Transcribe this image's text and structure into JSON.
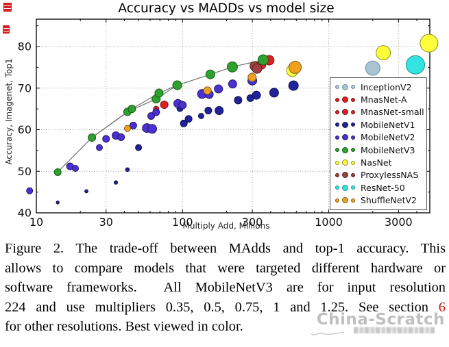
{
  "watermark": {
    "text": "China-Scratch"
  },
  "caption": {
    "lines": [
      {
        "justify": true,
        "segments": [
          {
            "t": "Figure 2. The trade-off between MAdds and top-1 accuracy. This"
          }
        ]
      },
      {
        "justify": true,
        "segments": [
          {
            "t": "allows to compare models that were targeted different hardware or"
          }
        ]
      },
      {
        "justify": true,
        "segments": [
          {
            "t": "software frameworks.  All MobileNetV3 are for input resolution"
          }
        ]
      },
      {
        "justify": true,
        "segments": [
          {
            "t": "224 and use multipliers 0.35, 0.5, 0.75, 1 and 1.25. See section"
          },
          {
            "t": " "
          },
          {
            "t": "6",
            "red": true,
            "link": true
          }
        ]
      },
      {
        "justify": false,
        "segments": [
          {
            "t": "for other resolutions. Best viewed in color."
          }
        ]
      }
    ]
  },
  "chart_data": {
    "type": "scatter",
    "title": "Accuracy vs MADDs vs model size",
    "xlabel": "Multiply Add, Millions",
    "ylabel": "Accuracy, Imagenet, Top1",
    "xscale": "log",
    "xlim": [
      10,
      4900
    ],
    "ylim": [
      40,
      86.6
    ],
    "xticks": [
      10,
      30,
      100,
      300,
      1000,
      3000
    ],
    "xminorticks": [
      20,
      40,
      50,
      60,
      70,
      80,
      90,
      200,
      400,
      500,
      600,
      700,
      800,
      900,
      2000,
      4000
    ],
    "yticks": [
      40,
      50,
      60,
      70,
      80
    ],
    "yminorticks": [
      45,
      55,
      65,
      75,
      85
    ],
    "grid": true,
    "legend_position": "right",
    "note": "point format: [madds_millions, top1_accuracy, marker_radius_px]",
    "series": [
      {
        "name": "InceptionV2",
        "color": "#aac4d4",
        "edge": "#70909f",
        "points": [
          [
            2000,
            74.8,
            10.5
          ]
        ]
      },
      {
        "name": "MnasNet-A",
        "color": "#e02020",
        "edge": "#7f1010",
        "points": [
          [
            75,
            66.0,
            5.5
          ],
          [
            346,
            75.6,
            6.5
          ],
          [
            392,
            76.7,
            7
          ]
        ]
      },
      {
        "name": "MnasNet-small",
        "color": "#d4202a",
        "edge": "#6f1015",
        "points": [
          [
            66,
            65.0,
            4
          ]
        ]
      },
      {
        "name": "MobileNetV1",
        "color": "#22229b",
        "edge": "#0e0e4e",
        "points": [
          [
            14,
            42.5,
            2.2
          ],
          [
            22,
            45.2,
            2.4
          ],
          [
            35,
            47.3,
            2.6
          ],
          [
            42,
            50.4,
            2.8
          ],
          [
            50,
            55.7,
            4.5
          ],
          [
            96,
            65.1,
            4.5
          ],
          [
            102,
            61.5,
            5
          ],
          [
            110,
            62.6,
            5
          ],
          [
            134,
            63.3,
            4
          ],
          [
            150,
            64.6,
            5
          ],
          [
            178,
            64.6,
            6
          ],
          [
            240,
            67.1,
            5.5
          ],
          [
            291,
            67.6,
            5
          ],
          [
            320,
            68.3,
            6
          ],
          [
            423,
            68.9,
            6.5
          ],
          [
            574,
            70.6,
            7
          ]
        ]
      },
      {
        "name": "MobileNetV2",
        "color": "#4a32d2",
        "edge": "#221566",
        "points": [
          [
            9,
            45.3,
            4.5
          ],
          [
            17,
            51.2,
            5
          ],
          [
            18.5,
            50.7,
            4.5
          ],
          [
            27,
            55.7,
            4.5
          ],
          [
            30,
            57.8,
            5
          ],
          [
            35,
            58.6,
            5.5
          ],
          [
            38,
            58.2,
            5
          ],
          [
            46,
            61.0,
            5
          ],
          [
            57,
            60.4,
            6.5
          ],
          [
            62,
            60.2,
            6.5
          ],
          [
            61,
            63.3,
            5
          ],
          [
            66,
            64.2,
            5
          ],
          [
            93,
            66.3,
            6
          ],
          [
            100,
            65.9,
            5.5
          ],
          [
            136,
            68.6,
            6.5
          ],
          [
            152,
            68.5,
            6
          ],
          [
            176,
            69.8,
            6
          ],
          [
            220,
            71.0,
            6
          ],
          [
            300,
            71.8,
            6.5
          ],
          [
            575,
            74.9,
            7.5
          ]
        ]
      },
      {
        "name": "MobileNetV3",
        "color": "#2ea12e",
        "edge": "#145c14",
        "points": [
          [
            14,
            49.8,
            5
          ],
          [
            24,
            58.1,
            5.5
          ],
          [
            42,
            64.3,
            5.5
          ],
          [
            45,
            65.0,
            5.5
          ],
          [
            66,
            67.4,
            6
          ],
          [
            69,
            68.8,
            6
          ],
          [
            92,
            70.7,
            6.5
          ],
          [
            155,
            73.3,
            6.5
          ],
          [
            219,
            75.1,
            7.5
          ],
          [
            356,
            76.8,
            7.5
          ]
        ]
      },
      {
        "name": "NasNet",
        "color": "#fdff3a",
        "edge": "#8e8e20",
        "points": [
          [
            564,
            74.2,
            8.5
          ],
          [
            2360,
            78.5,
            10.5
          ],
          [
            4850,
            80.8,
            13
          ]
        ]
      },
      {
        "name": "ProxylessNAS",
        "color": "#a04040",
        "edge": "#502020",
        "points": [
          [
            310,
            75.3,
            6.5
          ],
          [
            323,
            74.7,
            7
          ]
        ]
      },
      {
        "name": "ResNet-50",
        "color": "#35e3e3",
        "edge": "#1d9090",
        "points": [
          [
            3915,
            75.6,
            13.5
          ]
        ]
      },
      {
        "name": "ShuffleNetV2",
        "color": "#f0a01e",
        "edge": "#79601c",
        "points": [
          [
            42,
            60.3,
            4.5
          ],
          [
            148,
            69.4,
            5.5
          ],
          [
            299,
            72.6,
            6
          ],
          [
            589,
            75.0,
            9
          ]
        ]
      }
    ],
    "trend_lines": [
      {
        "series": "MobileNetV3",
        "points": [
          [
            14,
            49.8
          ],
          [
            24,
            58.1
          ],
          [
            42,
            64.3
          ],
          [
            66,
            67.4
          ],
          [
            92,
            70.7
          ],
          [
            155,
            73.3
          ],
          [
            219,
            75.1
          ],
          [
            356,
            76.8
          ]
        ]
      },
      {
        "series": "MobileNetV3",
        "points": [
          [
            24,
            58.1
          ],
          [
            45,
            65.0
          ],
          [
            69,
            68.8
          ],
          [
            92,
            70.7
          ]
        ]
      }
    ]
  }
}
